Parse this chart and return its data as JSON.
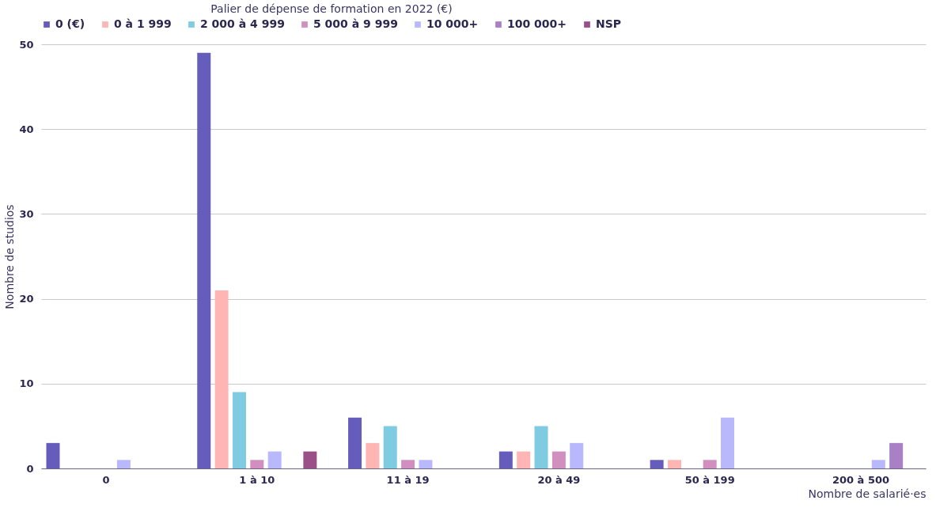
{
  "chart_data": {
    "type": "bar",
    "legend_title": "Palier de dépense de formation en 2022 (€)",
    "xlabel": "Nombre de salarié·es",
    "ylabel": "Nombre de studios",
    "categories": [
      "0",
      "1 à 10",
      "11 à 19",
      "20 à 49",
      "50 à 199",
      "200 à 500"
    ],
    "series": [
      {
        "name": "0 (€)",
        "color": "#665cbb",
        "values": [
          3,
          49,
          6,
          2,
          1,
          null
        ]
      },
      {
        "name": "0 à 1 999",
        "color": "#ffb5b3",
        "values": [
          null,
          21,
          3,
          2,
          1,
          null
        ]
      },
      {
        "name": "2 000 à 4 999",
        "color": "#7fcbe2",
        "values": [
          null,
          9,
          5,
          5,
          null,
          null
        ]
      },
      {
        "name": "5 000 à 9 999",
        "color": "#d08fbe",
        "values": [
          null,
          1,
          1,
          2,
          1,
          null
        ]
      },
      {
        "name": "10 000+",
        "color": "#b9b8fd",
        "values": [
          1,
          2,
          1,
          3,
          6,
          1
        ]
      },
      {
        "name": "100 000+",
        "color": "#a97fc6",
        "values": [
          null,
          null,
          null,
          null,
          null,
          3
        ]
      },
      {
        "name": "NSP",
        "color": "#9b4f88",
        "values": [
          null,
          2,
          null,
          null,
          null,
          null
        ]
      }
    ],
    "ylim": [
      0,
      50
    ],
    "yticks": [
      0,
      10,
      20,
      30,
      40,
      50
    ],
    "grid": "y",
    "legend": "top"
  }
}
